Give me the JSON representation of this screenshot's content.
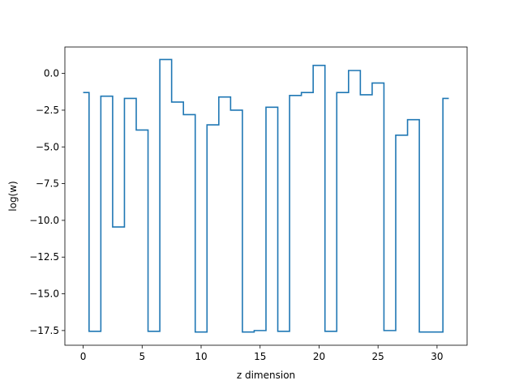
{
  "chart_data": {
    "type": "line",
    "drawstyle": "steps-mid",
    "title": "",
    "xlabel": "z dimension",
    "ylabel": "log(w)",
    "xlim": [
      -1.55,
      32.55
    ],
    "ylim": [
      -18.5,
      1.8
    ],
    "x_ticks": [
      0,
      5,
      10,
      15,
      20,
      25,
      30
    ],
    "x_tick_labels": [
      "0",
      "5",
      "10",
      "15",
      "20",
      "25",
      "30"
    ],
    "y_ticks": [
      0.0,
      -2.5,
      -5.0,
      -7.5,
      -10.0,
      -12.5,
      -15.0,
      -17.5
    ],
    "y_tick_labels": [
      "0.0",
      "−2.5",
      "−5.0",
      "−7.5",
      "−10.0",
      "−12.5",
      "−15.0",
      "−17.5"
    ],
    "grid": false,
    "series": [
      {
        "color": "#1f77b4",
        "x": [
          0,
          1,
          2,
          3,
          4,
          5,
          6,
          7,
          8,
          9,
          10,
          11,
          12,
          13,
          14,
          15,
          16,
          17,
          18,
          19,
          20,
          21,
          22,
          23,
          24,
          25,
          26,
          27,
          28,
          29,
          30,
          31
        ],
        "y": [
          -1.3,
          -17.55,
          -1.55,
          -10.45,
          -1.7,
          -3.85,
          -17.55,
          0.95,
          -1.95,
          -2.8,
          -17.6,
          -3.5,
          -1.6,
          -2.5,
          -17.6,
          -17.5,
          -2.3,
          -17.55,
          -1.5,
          -1.3,
          0.55,
          -17.55,
          -1.3,
          0.2,
          -1.45,
          -0.65,
          -17.5,
          -4.2,
          -3.15,
          -17.6,
          -17.6,
          -1.7
        ]
      }
    ]
  }
}
